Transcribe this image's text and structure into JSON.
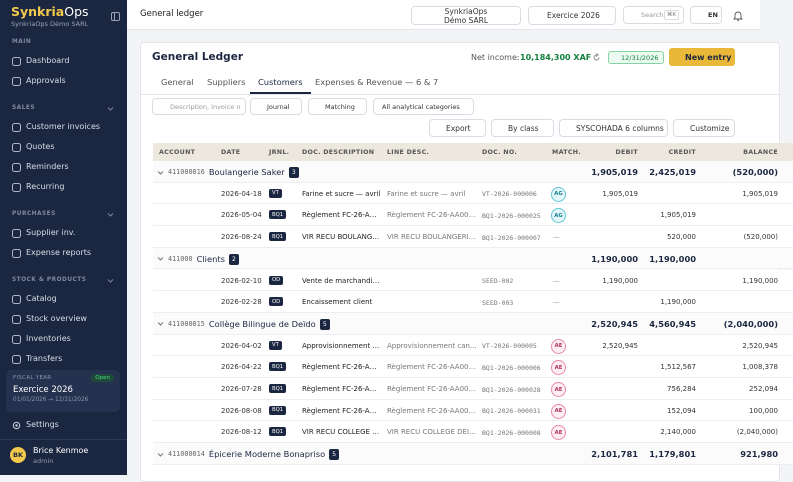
{
  "sidebar": {
    "brand": "Synkria",
    "brand_suffix": "Ops",
    "company": "SynkriaOps Démo SARL",
    "sections": [
      {
        "title": "MAIN",
        "items": [
          "Dashboard",
          "Approvals"
        ]
      },
      {
        "title": "SALES",
        "items": [
          "Customer invoices",
          "Quotes",
          "Reminders",
          "Recurring"
        ]
      },
      {
        "title": "PURCHASES",
        "items": [
          "Supplier inv.",
          "Expense reports"
        ]
      },
      {
        "title": "STOCK & PRODUCTS",
        "items": [
          "Catalog",
          "Stock overview",
          "Inventories",
          "Transfers"
        ]
      }
    ],
    "fiscal_year": {
      "label": "FISCAL YEAR",
      "status": "Open",
      "name": "Exercice 2026",
      "range": "01/01/2026 → 12/31/2026"
    },
    "settings": "Settings",
    "user": {
      "initials": "BK",
      "name": "Brice Kenmoe",
      "role": "admin"
    }
  },
  "topbar": {
    "title": "General ledger",
    "company": "SynkriaOps Démo SARL",
    "fiscal_year": "Exercice 2026",
    "search": "Search",
    "shortcut": "⌘K",
    "language": "EN"
  },
  "ledger": {
    "title": "General Ledger",
    "net_income_label": "Net income:",
    "net_income": "10,184,300 XAF",
    "date": "12/31/2026",
    "new_entry": "New entry",
    "tabs": [
      "General",
      "Suppliers",
      "Customers",
      "Expenses & Revenue — 6 & 7"
    ],
    "active_tab": 2,
    "search_placeholder": "Description, invoice n",
    "filters": [
      "Journal",
      "Matching",
      "All analytical categories"
    ],
    "actions": [
      "Export",
      "By class",
      "SYSCOHADA 6 columns",
      "Customize"
    ],
    "columns": [
      "ACCOUNT",
      "DATE",
      "JRNL.",
      "DOC. DESCRIPTION",
      "LINE DESC.",
      "DOC. NO.",
      "MATCH.",
      "DEBIT",
      "CREDIT",
      "BALANCE"
    ],
    "groups": [
      {
        "account": "411000016",
        "name": "Boulangerie Saker",
        "count": "3",
        "debit": "1,905,019",
        "credit": "2,425,019",
        "balance": "(520,000)",
        "rows": [
          {
            "date": "2026-04-18",
            "journal": "VT",
            "doc_desc": "Farine et sucre — avril",
            "line_desc": "Farine et sucre — avril",
            "doc_no": "VT-2026-000006",
            "match": "AG",
            "debit": "1,905,019",
            "credit": null,
            "balance": "1,905,019"
          },
          {
            "date": "2026-05-04",
            "journal": "BQ1",
            "doc_desc": "Règlement FC-26-A…",
            "line_desc": "Règlement FC-26-AA00…",
            "doc_no": "BQ1-2026-000025",
            "match": "AG",
            "debit": null,
            "credit": "1,905,019",
            "balance": null
          },
          {
            "date": "2026-08-24",
            "journal": "BQ1",
            "doc_desc": "VIR RECU BOULANG…",
            "line_desc": "VIR RECU BOULANGERI…",
            "doc_no": "BQ1-2026-000007",
            "match": "—",
            "debit": null,
            "credit": "520,000",
            "balance": "(520,000)"
          }
        ]
      },
      {
        "account": "411000",
        "name": "Clients",
        "count": "2",
        "debit": "1,190,000",
        "credit": "1,190,000",
        "balance": null,
        "rows": [
          {
            "date": "2026-02-10",
            "journal": "OD",
            "doc_desc": "Vente de marchandi…",
            "line_desc": null,
            "doc_no": "SEED-002",
            "match": "—",
            "debit": "1,190,000",
            "credit": null,
            "balance": "1,190,000"
          },
          {
            "date": "2026-02-28",
            "journal": "OD",
            "doc_desc": "Encaissement client",
            "line_desc": null,
            "doc_no": "SEED-003",
            "match": "—",
            "debit": null,
            "credit": "1,190,000",
            "balance": null
          }
        ]
      },
      {
        "account": "411000015",
        "name": "Collège Bilingue de Deïdo",
        "count": "5",
        "debit": "2,520,945",
        "credit": "4,560,945",
        "balance": "(2,040,000)",
        "rows": [
          {
            "date": "2026-04-02",
            "journal": "VT",
            "doc_desc": "Approvisionnement …",
            "line_desc": "Approvisionnement can…",
            "doc_no": "VT-2026-000005",
            "match": "AE",
            "debit": "2,520,945",
            "credit": null,
            "balance": "2,520,945"
          },
          {
            "date": "2026-04-22",
            "journal": "BQ1",
            "doc_desc": "Règlement FC-26-A…",
            "line_desc": "Règlement FC-26-AA00…",
            "doc_no": "BQ1-2026-000006",
            "match": "AE",
            "debit": null,
            "credit": "1,512,567",
            "balance": "1,008,378"
          },
          {
            "date": "2026-07-28",
            "journal": "BQ1",
            "doc_desc": "Règlement FC-26-A…",
            "line_desc": "Règlement FC-26-AA00…",
            "doc_no": "BQ1-2026-000028",
            "match": "AE",
            "debit": null,
            "credit": "756,284",
            "balance": "252,094"
          },
          {
            "date": "2026-08-08",
            "journal": "BQ1",
            "doc_desc": "Règlement FC-26-A…",
            "line_desc": "Règlement FC-26-AA00…",
            "doc_no": "BQ1-2026-000031",
            "match": "AE",
            "debit": null,
            "credit": "152,094",
            "balance": "100,000"
          },
          {
            "date": "2026-08-12",
            "journal": "BQ1",
            "doc_desc": "VIR RECU COLLEGE …",
            "line_desc": "VIR RECU COLLEGE DEI…",
            "doc_no": "BQ1-2026-000008",
            "match": "AE",
            "debit": null,
            "credit": "2,140,000",
            "balance": "(2,040,000)"
          }
        ]
      },
      {
        "account": "411000014",
        "name": "Épicerie Moderne Bonapriso",
        "count": "5",
        "debit": "2,101,781",
        "credit": "1,179,801",
        "balance": "921,980",
        "rows": []
      }
    ]
  }
}
